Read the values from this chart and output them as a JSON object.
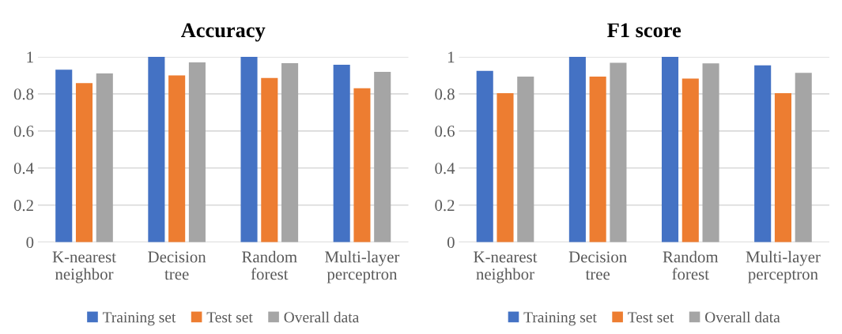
{
  "chart_data": [
    {
      "type": "bar",
      "title": "Accuracy",
      "categories": [
        "K-nearest\nneighbor",
        "Decision\ntree",
        "Random\nforest",
        "Multi-layer\nperceptron"
      ],
      "series": [
        {
          "name": "Training set",
          "color": "#4472c4",
          "values": [
            0.93,
            1,
            1,
            0.957
          ]
        },
        {
          "name": "Test set",
          "color": "#ed7d31",
          "values": [
            0.858,
            0.9,
            0.886,
            0.83
          ]
        },
        {
          "name": "Overall data",
          "color": "#a5a5a5",
          "values": [
            0.91,
            0.97,
            0.966,
            0.919
          ]
        }
      ],
      "ylim": [
        0,
        1
      ],
      "yticks": [
        0,
        0.2,
        0.4,
        0.6,
        0.8,
        1
      ],
      "grid": "y",
      "legend": "bottom"
    },
    {
      "type": "bar",
      "title": "F1 score",
      "categories": [
        "K-nearest\nneighbor",
        "Decision\ntree",
        "Random\nforest",
        "Multi-layer\nperceptron"
      ],
      "series": [
        {
          "name": "Training set",
          "color": "#4472c4",
          "values": [
            0.924,
            1,
            1,
            0.954
          ]
        },
        {
          "name": "Test set",
          "color": "#ed7d31",
          "values": [
            0.804,
            0.893,
            0.882,
            0.804
          ]
        },
        {
          "name": "Overall data",
          "color": "#a5a5a5",
          "values": [
            0.893,
            0.968,
            0.964,
            0.913
          ]
        }
      ],
      "ylim": [
        0,
        1
      ],
      "yticks": [
        0,
        0.2,
        0.4,
        0.6,
        0.8,
        1
      ],
      "grid": "y",
      "legend": "bottom"
    }
  ]
}
